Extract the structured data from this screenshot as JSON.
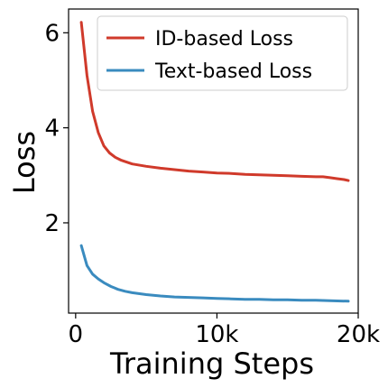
{
  "chart_data": {
    "type": "line",
    "xlabel": "Training Steps",
    "ylabel": "Loss",
    "xlim": [
      -500,
      20000
    ],
    "ylim": [
      0.1,
      6.5
    ],
    "xticks": [
      {
        "value": 0,
        "label": "0"
      },
      {
        "value": 10000,
        "label": "10k"
      },
      {
        "value": 20000,
        "label": "20k"
      }
    ],
    "yticks": [
      {
        "value": 2,
        "label": "2"
      },
      {
        "value": 4,
        "label": "4"
      },
      {
        "value": 6,
        "label": "6"
      }
    ],
    "grid": false,
    "legend_position": "top-right",
    "series": [
      {
        "name": "ID-based Loss",
        "color": "#d03a2b",
        "x": [
          400,
          800,
          1200,
          1600,
          2000,
          2400,
          2800,
          3200,
          3600,
          4000,
          5000,
          6000,
          7000,
          8000,
          9000,
          10000,
          11000,
          12000,
          13000,
          14000,
          15000,
          16000,
          17000,
          17500,
          18000,
          18500,
          19000,
          19300
        ],
        "y": [
          6.22,
          5.1,
          4.35,
          3.9,
          3.62,
          3.47,
          3.38,
          3.32,
          3.28,
          3.24,
          3.19,
          3.15,
          3.12,
          3.09,
          3.07,
          3.05,
          3.04,
          3.02,
          3.01,
          3.0,
          2.99,
          2.98,
          2.97,
          2.97,
          2.95,
          2.93,
          2.91,
          2.89
        ]
      },
      {
        "name": "Text-based Loss",
        "color": "#3a8bbf",
        "x": [
          400,
          800,
          1200,
          1600,
          2000,
          2500,
          3000,
          3500,
          4000,
          5000,
          6000,
          7000,
          8000,
          9000,
          10000,
          11000,
          12000,
          13000,
          14000,
          15000,
          16000,
          17000,
          18000,
          19300
        ],
        "y": [
          1.52,
          1.1,
          0.92,
          0.82,
          0.74,
          0.66,
          0.6,
          0.56,
          0.53,
          0.49,
          0.46,
          0.44,
          0.43,
          0.42,
          0.41,
          0.4,
          0.39,
          0.39,
          0.38,
          0.38,
          0.37,
          0.37,
          0.36,
          0.35
        ]
      }
    ]
  }
}
